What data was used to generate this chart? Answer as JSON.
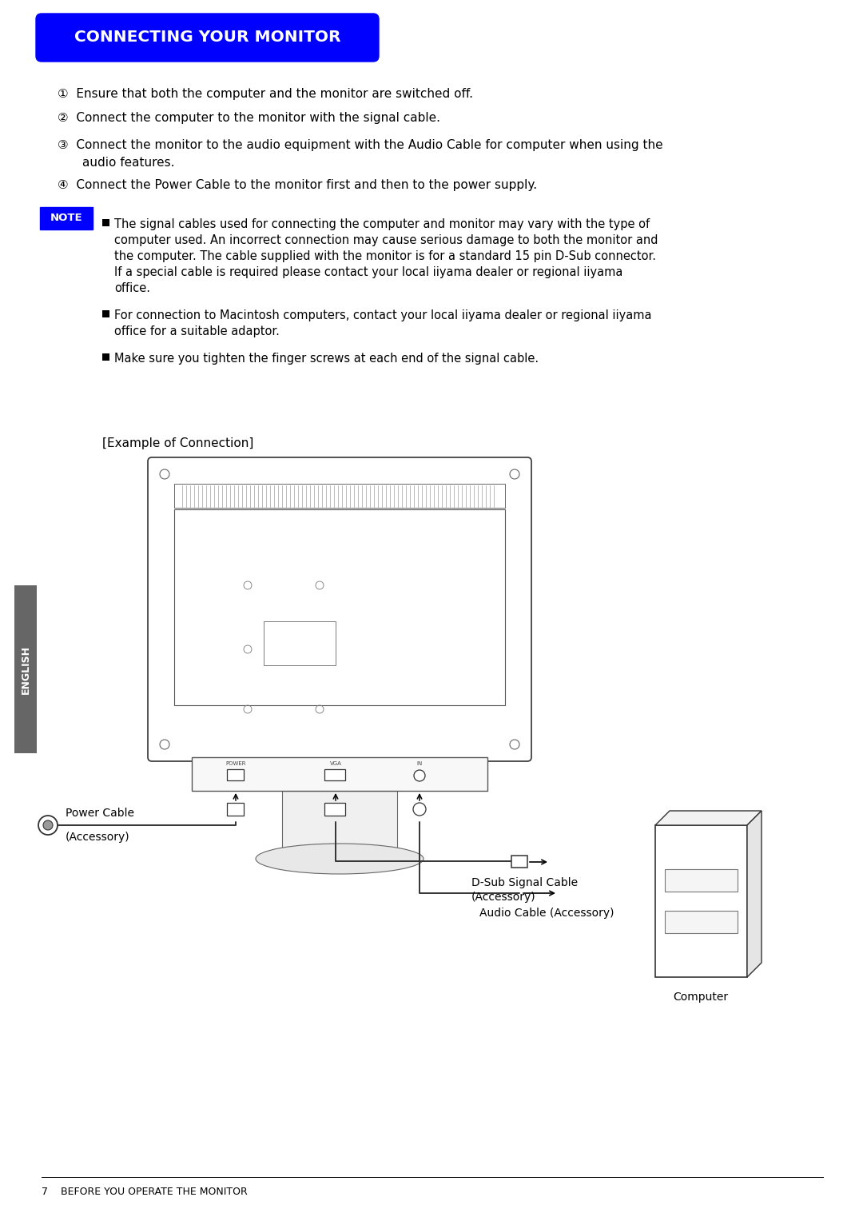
{
  "title": "CONNECTING YOUR MONITOR",
  "title_bg": "#0000FF",
  "title_color": "#FFFFFF",
  "bg_color": "#FFFFFF",
  "num1": "①  Ensure that both the computer and the monitor are switched off.",
  "num2": "②  Connect the computer to the monitor with the signal cable.",
  "num3a": "③  Connect the monitor to the audio equipment with the Audio Cable for computer when using the",
  "num3b": "audio features.",
  "num4": "④  Connect the Power Cable to the monitor first and then to the power supply.",
  "note_label": "NOTE",
  "note_bg": "#0000FF",
  "note_color": "#FFFFFF",
  "note1a": "The signal cables used for connecting the computer and monitor may vary with the type of",
  "note1b": "computer used. An incorrect connection may cause serious damage to both the monitor and",
  "note1c": "the computer. The cable supplied with the monitor is for a standard 15 pin D-Sub connector.",
  "note1d": "If a special cable is required please contact your local iiyama dealer or regional iiyama",
  "note1e": "office.",
  "note2a": "For connection to Macintosh computers, contact your local iiyama dealer or regional iiyama",
  "note2b": "office for a suitable adaptor.",
  "note3": "Make sure you tighten the finger screws at each end of the signal cable.",
  "example_label": "[Example of Connection]",
  "power_cable_label1": "Power Cable",
  "power_cable_label2": "(Accessory)",
  "dsub_label1": "D-Sub Signal Cable",
  "dsub_label2": "(Accessory)",
  "audio_label": "Audio Cable (Accessory)",
  "computer_label": "Computer",
  "footer_text": "7    BEFORE YOU OPERATE THE MONITOR",
  "english_sidebar": "ENGLISH",
  "sidebar_bg": "#666666",
  "text_color": "#000000",
  "line_color": "#333333"
}
